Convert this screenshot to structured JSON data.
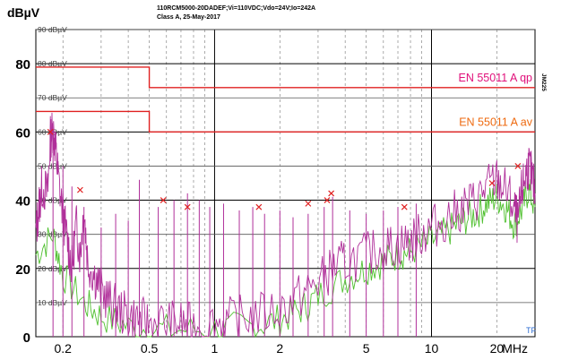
{
  "header": {
    "y_unit": "dBµV",
    "title": "110RCM5000-20DADEF;Vi=110VDC;Vdo=24V;Io=242A",
    "subtitle": "Class A, 25-May-2017"
  },
  "side_tags": {
    "right_top": "JM225",
    "corner": "TF"
  },
  "chart_data": {
    "type": "line",
    "x_scale": "log",
    "xlim": [
      0.15,
      30
    ],
    "ylim": [
      0,
      90
    ],
    "y_ticks_major": [
      0,
      20,
      40,
      60,
      80
    ],
    "y_ticks_major_labels": [
      "0",
      "20",
      "40",
      "60",
      "80"
    ],
    "y_ticks_minor": [
      10,
      20,
      30,
      40,
      50,
      60,
      70,
      80,
      90
    ],
    "y_ticks_minor_labels": [
      "10 dBµV",
      "20 dBµV",
      "30 dBµV",
      "40 dBµV",
      "50 dBµV",
      "60 dBµV",
      "70 dBµV",
      "80 dBµV",
      "90 dBµV"
    ],
    "x_ticks": [
      0.2,
      0.5,
      1,
      2,
      5,
      10,
      20
    ],
    "x_tick_labels": [
      "0.2",
      "0.5",
      "1",
      "2",
      "5",
      "10",
      "20"
    ],
    "x_unit_label": "MHz",
    "grid": true,
    "limits": [
      {
        "name": "EN 55011 A qp",
        "label_color": "#e0107a",
        "points": [
          [
            0.15,
            79
          ],
          [
            0.5,
            79
          ],
          [
            0.5,
            73
          ],
          [
            30,
            73
          ]
        ]
      },
      {
        "name": "EN 55011 A av",
        "label_color": "#ee6a10",
        "points": [
          [
            0.15,
            66
          ],
          [
            0.5,
            66
          ],
          [
            0.5,
            60
          ],
          [
            30,
            60
          ]
        ]
      }
    ],
    "series": [
      {
        "color": "#b0309a",
        "style": "peak",
        "points": [
          [
            0.15,
            30
          ],
          [
            0.155,
            38
          ],
          [
            0.16,
            44
          ],
          [
            0.17,
            42
          ],
          [
            0.175,
            58
          ],
          [
            0.18,
            61
          ],
          [
            0.185,
            55
          ],
          [
            0.19,
            47
          ],
          [
            0.2,
            36
          ],
          [
            0.21,
            28
          ],
          [
            0.22,
            20
          ],
          [
            0.23,
            33
          ],
          [
            0.24,
            24
          ],
          [
            0.25,
            38
          ],
          [
            0.26,
            22
          ],
          [
            0.28,
            18
          ],
          [
            0.3,
            14
          ],
          [
            0.33,
            10
          ],
          [
            0.36,
            8
          ],
          [
            0.4,
            6
          ],
          [
            0.45,
            5
          ],
          [
            0.5,
            4
          ],
          [
            0.6,
            4
          ],
          [
            0.7,
            4
          ],
          [
            0.8,
            3
          ],
          [
            1,
            4
          ],
          [
            1.2,
            5
          ],
          [
            1.5,
            6
          ],
          [
            2,
            8
          ],
          [
            2.5,
            12
          ],
          [
            3,
            16
          ],
          [
            3.5,
            20
          ],
          [
            4,
            22
          ],
          [
            5,
            24
          ],
          [
            6,
            26
          ],
          [
            7,
            27
          ],
          [
            8,
            28
          ],
          [
            9,
            30
          ],
          [
            10,
            32
          ],
          [
            12,
            35
          ],
          [
            14,
            38
          ],
          [
            16,
            40
          ],
          [
            18,
            44
          ],
          [
            20,
            46
          ],
          [
            22,
            43
          ],
          [
            24,
            38
          ],
          [
            25,
            33
          ],
          [
            26,
            42
          ],
          [
            27,
            47
          ],
          [
            28,
            50
          ],
          [
            29,
            47
          ],
          [
            30,
            42
          ]
        ]
      },
      {
        "color": "#50c030",
        "style": "avg",
        "points": [
          [
            0.15,
            24
          ],
          [
            0.18,
            30
          ],
          [
            0.2,
            18
          ],
          [
            0.25,
            10
          ],
          [
            0.3,
            6
          ],
          [
            0.4,
            3
          ],
          [
            0.6,
            2
          ],
          [
            1,
            2
          ],
          [
            1.5,
            3
          ],
          [
            2,
            5
          ],
          [
            2.5,
            8
          ],
          [
            3,
            12
          ],
          [
            4,
            17
          ],
          [
            5,
            20
          ],
          [
            6,
            22
          ],
          [
            7,
            24
          ],
          [
            8,
            25
          ],
          [
            10,
            28
          ],
          [
            12,
            31
          ],
          [
            14,
            34
          ],
          [
            16,
            36
          ],
          [
            18,
            39
          ],
          [
            20,
            41
          ],
          [
            22,
            38
          ],
          [
            24,
            33
          ],
          [
            26,
            37
          ],
          [
            28,
            43
          ],
          [
            30,
            38
          ]
        ]
      }
    ],
    "spikes": [
      {
        "x": 0.18,
        "y": 60
      },
      {
        "x": 0.2,
        "y": 50
      },
      {
        "x": 0.22,
        "y": 44
      },
      {
        "x": 0.25,
        "y": 38
      },
      {
        "x": 0.3,
        "y": 32
      },
      {
        "x": 0.35,
        "y": 36
      },
      {
        "x": 0.4,
        "y": 34
      },
      {
        "x": 0.45,
        "y": 46
      },
      {
        "x": 0.55,
        "y": 38
      },
      {
        "x": 0.65,
        "y": 40
      },
      {
        "x": 0.75,
        "y": 42
      },
      {
        "x": 0.85,
        "y": 40
      },
      {
        "x": 0.95,
        "y": 38
      },
      {
        "x": 1.1,
        "y": 39
      },
      {
        "x": 1.3,
        "y": 37
      },
      {
        "x": 1.5,
        "y": 38
      },
      {
        "x": 1.7,
        "y": 36
      },
      {
        "x": 2.0,
        "y": 37
      },
      {
        "x": 2.3,
        "y": 35
      },
      {
        "x": 2.7,
        "y": 36
      },
      {
        "x": 3.2,
        "y": 38
      },
      {
        "x": 3.5,
        "y": 41
      },
      {
        "x": 4.2,
        "y": 37
      },
      {
        "x": 5.0,
        "y": 36
      },
      {
        "x": 6.0,
        "y": 37
      },
      {
        "x": 7.0,
        "y": 38
      },
      {
        "x": 8.5,
        "y": 39
      }
    ],
    "markers": [
      {
        "x": 0.175,
        "y": 60
      },
      {
        "x": 0.24,
        "y": 43
      },
      {
        "x": 0.58,
        "y": 40
      },
      {
        "x": 0.75,
        "y": 38
      },
      {
        "x": 1.6,
        "y": 38
      },
      {
        "x": 2.7,
        "y": 39
      },
      {
        "x": 3.3,
        "y": 40
      },
      {
        "x": 3.45,
        "y": 42
      },
      {
        "x": 7.5,
        "y": 38
      },
      {
        "x": 19,
        "y": 45
      },
      {
        "x": 25,
        "y": 50
      }
    ]
  }
}
